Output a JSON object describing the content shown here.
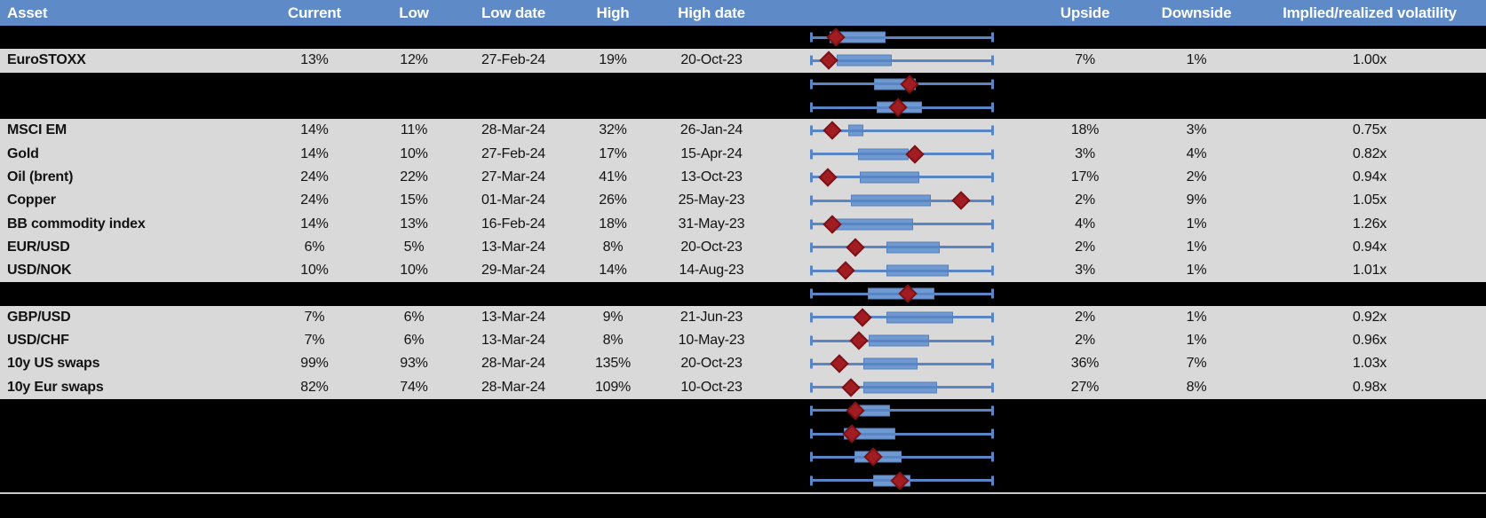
{
  "columns": [
    {
      "key": "asset",
      "label": "Asset"
    },
    {
      "key": "current",
      "label": "Current"
    },
    {
      "key": "low",
      "label": "Low"
    },
    {
      "key": "low_date",
      "label": "Low date"
    },
    {
      "key": "high",
      "label": "High"
    },
    {
      "key": "high_date",
      "label": "High date"
    },
    {
      "key": "chart",
      "label": ""
    },
    {
      "key": "upside",
      "label": "Upside"
    },
    {
      "key": "downside",
      "label": "Downside"
    },
    {
      "key": "iv_rv",
      "label": "Implied/realized volatility"
    }
  ],
  "chart_data": {
    "type": "table",
    "embedded_chart_type": "boxplot",
    "boxplot_hints": {
      "x_range_normalized": [
        0,
        1
      ],
      "whisker_low_frac": 0,
      "whisker_high_frac": 1,
      "box": "blue interquartile band (q1..q3 as fraction of low-high span)",
      "marker": "red diamond = current level (fraction of low-high span)"
    },
    "rows": [
      {
        "type": "spacer",
        "box": {
          "q1": 0.102,
          "q3": 0.41,
          "marker": 0.137
        }
      },
      {
        "type": "data",
        "asset": "EuroSTOXX",
        "current": "13%",
        "low": "12%",
        "low_date": "27-Feb-24",
        "high": "19%",
        "high_date": "20-Oct-23",
        "upside": "7%",
        "downside": "1%",
        "iv_rv": "1.00x",
        "box": {
          "q1": 0.141,
          "q3": 0.444,
          "marker": 0.098
        }
      },
      {
        "type": "spacer",
        "box": {
          "q1": 0.346,
          "q3": 0.576,
          "marker": 0.541
        }
      },
      {
        "type": "spacer",
        "box": {
          "q1": 0.361,
          "q3": 0.61,
          "marker": 0.478
        }
      },
      {
        "type": "data",
        "asset": "MSCI EM",
        "current": "14%",
        "low": "11%",
        "low_date": "28-Mar-24",
        "high": "32%",
        "high_date": "26-Jan-24",
        "upside": "18%",
        "downside": "3%",
        "iv_rv": "0.75x",
        "box": {
          "q1": 0.205,
          "q3": 0.288,
          "marker": 0.117
        }
      },
      {
        "type": "data",
        "asset": "Gold",
        "current": "14%",
        "low": "10%",
        "low_date": "27-Feb-24",
        "high": "17%",
        "high_date": "15-Apr-24",
        "upside": "3%",
        "downside": "4%",
        "iv_rv": "0.82x",
        "box": {
          "q1": 0.259,
          "q3": 0.537,
          "marker": 0.571
        }
      },
      {
        "type": "data",
        "asset": "Oil (brent)",
        "current": "24%",
        "low": "22%",
        "low_date": "27-Mar-24",
        "high": "41%",
        "high_date": "13-Oct-23",
        "upside": "17%",
        "downside": "2%",
        "iv_rv": "0.94x",
        "box": {
          "q1": 0.268,
          "q3": 0.595,
          "marker": 0.093
        }
      },
      {
        "type": "data",
        "asset": "Copper",
        "current": "24%",
        "low": "15%",
        "low_date": "01-Mar-24",
        "high": "26%",
        "high_date": "25-May-23",
        "upside": "2%",
        "downside": "9%",
        "iv_rv": "1.05x",
        "box": {
          "q1": 0.22,
          "q3": 0.659,
          "marker": 0.824
        }
      },
      {
        "type": "data",
        "asset": "BB commodity index",
        "current": "14%",
        "low": "13%",
        "low_date": "16-Feb-24",
        "high": "18%",
        "high_date": "31-May-23",
        "upside": "4%",
        "downside": "1%",
        "iv_rv": "1.26x",
        "box": {
          "q1": 0.122,
          "q3": 0.561,
          "marker": 0.117
        }
      },
      {
        "type": "data",
        "asset": "EUR/USD",
        "current": "6%",
        "low": "5%",
        "low_date": "13-Mar-24",
        "high": "8%",
        "high_date": "20-Oct-23",
        "upside": "2%",
        "downside": "1%",
        "iv_rv": "0.94x",
        "box": {
          "q1": 0.415,
          "q3": 0.707,
          "marker": 0.244
        }
      },
      {
        "type": "data",
        "asset": "USD/NOK",
        "current": "10%",
        "low": "10%",
        "low_date": "29-Mar-24",
        "high": "14%",
        "high_date": "14-Aug-23",
        "upside": "3%",
        "downside": "1%",
        "iv_rv": "1.01x",
        "box": {
          "q1": 0.415,
          "q3": 0.756,
          "marker": 0.19
        }
      },
      {
        "type": "spacer",
        "box": {
          "q1": 0.312,
          "q3": 0.678,
          "marker": 0.532
        }
      },
      {
        "type": "data",
        "asset": "GBP/USD",
        "current": "7%",
        "low": "6%",
        "low_date": "13-Mar-24",
        "high": "9%",
        "high_date": "21-Jun-23",
        "upside": "2%",
        "downside": "1%",
        "iv_rv": "0.92x",
        "box": {
          "q1": 0.415,
          "q3": 0.78,
          "marker": 0.283
        }
      },
      {
        "type": "data",
        "asset": "USD/CHF",
        "current": "7%",
        "low": "6%",
        "low_date": "13-Mar-24",
        "high": "8%",
        "high_date": "10-May-23",
        "upside": "2%",
        "downside": "1%",
        "iv_rv": "0.96x",
        "box": {
          "q1": 0.317,
          "q3": 0.649,
          "marker": 0.263
        }
      },
      {
        "type": "data",
        "asset": "10y US swaps",
        "current": "99%",
        "low": "93%",
        "low_date": "28-Mar-24",
        "high": "135%",
        "high_date": "20-Oct-23",
        "upside": "36%",
        "downside": "7%",
        "iv_rv": "1.03x",
        "box": {
          "q1": 0.288,
          "q3": 0.585,
          "marker": 0.156
        }
      },
      {
        "type": "data",
        "asset": "10y Eur swaps",
        "current": "82%",
        "low": "74%",
        "low_date": "28-Mar-24",
        "high": "109%",
        "high_date": "10-Oct-23",
        "upside": "27%",
        "downside": "8%",
        "iv_rv": "0.98x",
        "box": {
          "q1": 0.288,
          "q3": 0.693,
          "marker": 0.22
        }
      },
      {
        "type": "spacer",
        "box": {
          "q1": 0.229,
          "q3": 0.434,
          "marker": 0.244
        }
      },
      {
        "type": "spacer",
        "box": {
          "q1": 0.18,
          "q3": 0.463,
          "marker": 0.224
        }
      },
      {
        "type": "spacer",
        "box": {
          "q1": 0.239,
          "q3": 0.498,
          "marker": 0.341
        }
      },
      {
        "type": "spacer",
        "box": {
          "q1": 0.341,
          "q3": 0.546,
          "marker": 0.488
        }
      }
    ]
  },
  "colors": {
    "header-bg": "#5e8ac7",
    "header-fg": "#ffffff",
    "row-bg": "#d9d9d9",
    "spacer-bg": "#000000",
    "text": "#121212",
    "whisker": "#5a85c5",
    "box-fill": "#6f9ad1",
    "box-border": "#5880ba",
    "marker-fill": "#a11d22",
    "marker-border": "#7c1316",
    "divider": "#c9c9c9"
  }
}
